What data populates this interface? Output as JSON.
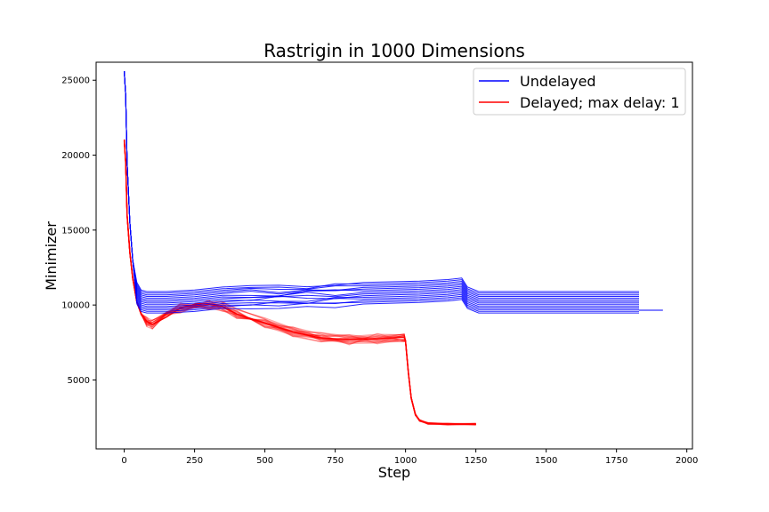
{
  "chart_data": {
    "type": "line",
    "title": "Rastrigin in 1000 Dimensions",
    "xlabel": "Step",
    "ylabel": "Minimizer",
    "xlim": [
      -100,
      2020
    ],
    "ylim": [
      400,
      26200
    ],
    "xticks": [
      0,
      250,
      500,
      750,
      1000,
      1250,
      1500,
      1750,
      2000
    ],
    "yticks": [
      5000,
      10000,
      15000,
      20000,
      25000
    ],
    "grid": false,
    "legend_position": "top-right",
    "series": [
      {
        "name": "Undelayed",
        "color": "#0000ff",
        "x": [
          0,
          5,
          10,
          20,
          30,
          45,
          60,
          80,
          150,
          250,
          350,
          450,
          550,
          650,
          750,
          850,
          950,
          1050,
          1150,
          1200,
          1220,
          1260,
          1830
        ],
        "y": [
          25600,
          24000,
          19500,
          15500,
          13000,
          11500,
          11000,
          10900,
          10900,
          11000,
          11200,
          11300,
          11300,
          11350,
          11400,
          11500,
          11550,
          11600,
          11700,
          11800,
          11200,
          10900,
          10900
        ]
      },
      {
        "name": "Delayed; max delay: 1",
        "color": "#ff0000",
        "x": [
          0,
          5,
          10,
          20,
          30,
          45,
          60,
          80,
          100,
          150,
          200,
          260,
          300,
          350,
          400,
          500,
          600,
          700,
          800,
          900,
          995,
          1000,
          1010,
          1020,
          1035,
          1050,
          1080,
          1150,
          1250
        ],
        "y": [
          21000,
          19500,
          16000,
          13500,
          11800,
          10200,
          9400,
          8900,
          8700,
          9200,
          9800,
          10100,
          10050,
          9900,
          9400,
          8800,
          8200,
          7800,
          7700,
          7750,
          7850,
          7600,
          5500,
          3800,
          2700,
          2300,
          2100,
          2050,
          2050
        ]
      }
    ]
  }
}
